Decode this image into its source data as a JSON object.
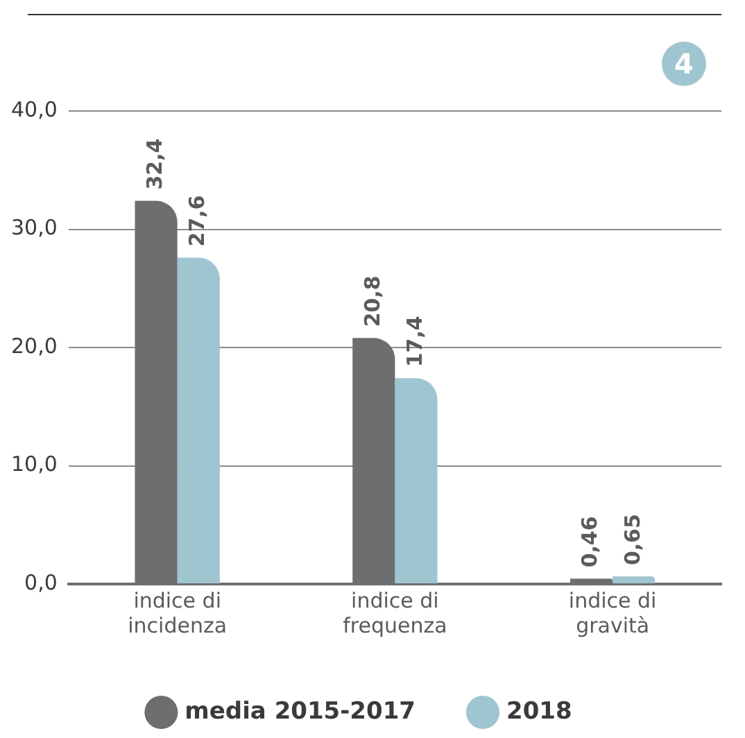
{
  "chart_data": {
    "type": "bar",
    "categories": [
      "indice di incidenza",
      "indice di frequenza",
      "indice di gravità"
    ],
    "series": [
      {
        "name": "media 2015-2017",
        "color": "#6d6e70",
        "values": [
          32.4,
          20.8,
          0.46
        ],
        "value_labels": [
          "32,4",
          "20,8",
          "0,46"
        ]
      },
      {
        "name": "2018",
        "color": "#9fc5d0",
        "values": [
          27.6,
          17.4,
          0.65
        ],
        "value_labels": [
          "27,6",
          "17,4",
          "0,65"
        ]
      }
    ],
    "ylim": [
      0,
      40
    ],
    "yticks": [
      {
        "value": 0,
        "label": "0,0"
      },
      {
        "value": 10,
        "label": "10,0"
      },
      {
        "value": 20,
        "label": "20,0"
      },
      {
        "value": 30,
        "label": "30,0"
      },
      {
        "value": 40,
        "label": "40,0"
      }
    ],
    "grid": "y",
    "legend": "bottom",
    "marker": "circle",
    "annotations": [
      "4"
    ]
  }
}
